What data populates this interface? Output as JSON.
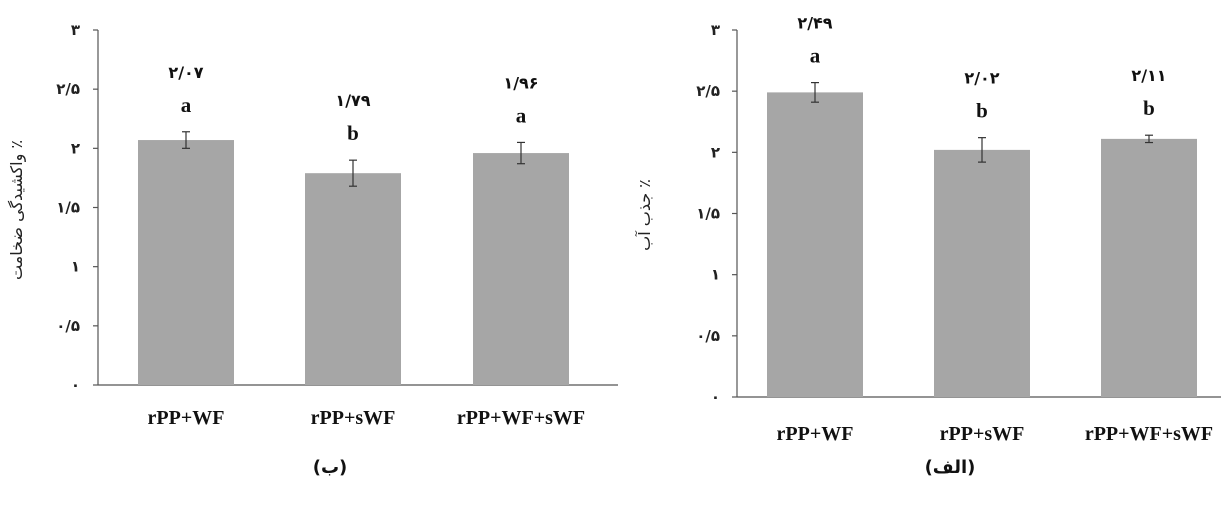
{
  "chart_data": [
    {
      "id": "b",
      "type": "bar",
      "panel_label": "(ب)",
      "ylabel": "واکشیدگی ضخامت ٪",
      "ylim": [
        0,
        3
      ],
      "yticks": [
        0,
        0.5,
        1,
        1.5,
        2,
        2.5,
        3
      ],
      "yticklabels": [
        "۰",
        "۰/۵",
        "۱",
        "۱/۵",
        "۲",
        "۲/۵",
        "۳"
      ],
      "categories": [
        "rPP+WF",
        "rPP+sWF",
        "rPP+WF+sWF"
      ],
      "values": [
        2.07,
        1.79,
        1.96
      ],
      "errors": [
        0.07,
        0.11,
        0.09
      ],
      "value_labels": [
        "۲/۰۷",
        "۱/۷۹",
        "۱/۹۶"
      ],
      "significance": [
        "a",
        "b",
        "a"
      ],
      "bar_color": "#a6a6a6",
      "grid": false
    },
    {
      "id": "alef",
      "type": "bar",
      "panel_label": "(الف)",
      "ylabel": "جذب آب ٪",
      "ylim": [
        0,
        3
      ],
      "yticks": [
        0,
        0.5,
        1,
        1.5,
        2,
        2.5,
        3
      ],
      "yticklabels": [
        "۰",
        "۰/۵",
        "۱",
        "۱/۵",
        "۲",
        "۲/۵",
        "۳"
      ],
      "categories": [
        "rPP+WF",
        "rPP+sWF",
        "rPP+WF+sWF"
      ],
      "values": [
        2.49,
        2.02,
        2.11
      ],
      "errors": [
        0.08,
        0.1,
        0.03
      ],
      "value_labels": [
        "۲/۴۹",
        "۲/۰۲",
        "۲/۱۱"
      ],
      "significance": [
        "a",
        "b",
        "b"
      ],
      "bar_color": "#a6a6a6",
      "grid": false
    }
  ]
}
